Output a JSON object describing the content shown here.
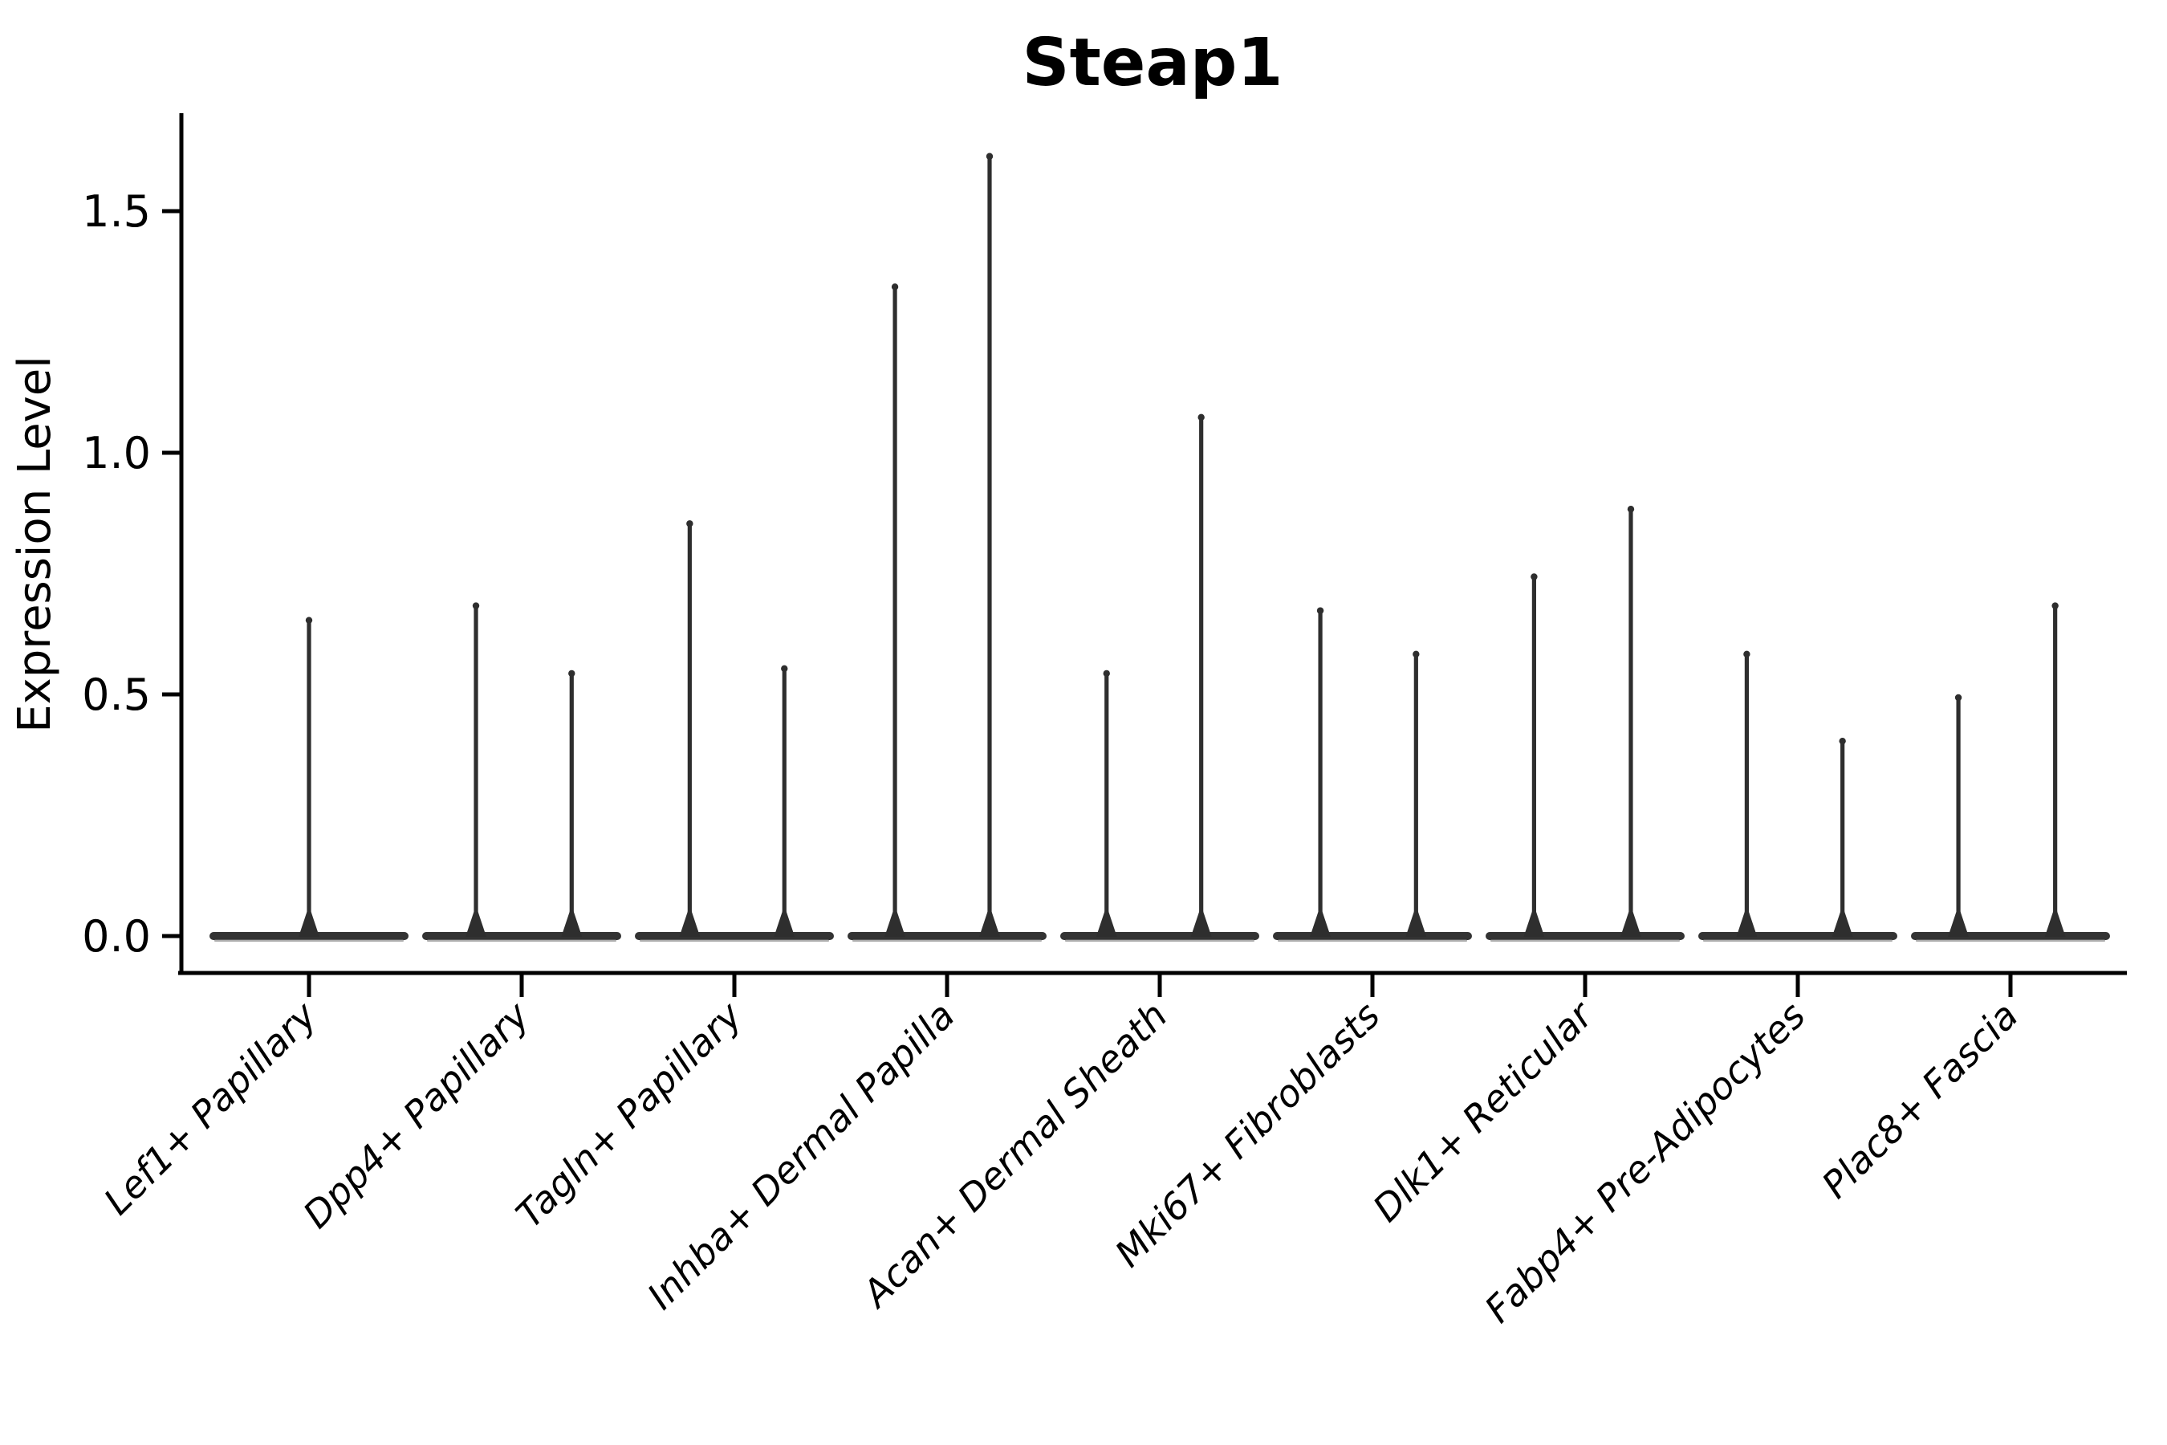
{
  "page": {
    "background": "#ffffff"
  },
  "chart_data": {
    "type": "violin",
    "title": "Steap1",
    "ylabel": "Expression Level",
    "xlabel": "",
    "grid": false,
    "legend": "none",
    "ylim": [
      -0.08,
      1.7
    ],
    "ytick_labels": [
      "0.0",
      "0.5",
      "1.0",
      "1.5"
    ],
    "ytick_values": [
      0.0,
      0.5,
      1.0,
      1.5
    ],
    "categories": [
      "Lef1+ Papillary",
      "Dpp4+ Papillary",
      "Tagln+ Papillary",
      "Inhba+ Dermal Papilla",
      "Acan+ Dermal Sheath",
      "Mki67+ Fibroblasts",
      "Dlk1+ Reticular",
      "Fabp4+ Pre-Adipocytes",
      "Plac8+ Fascia"
    ],
    "violins": [
      {
        "category": "Lef1+ Papillary",
        "spikes": [
          {
            "offset": 0.0,
            "max": 0.66
          }
        ]
      },
      {
        "category": "Dpp4+ Papillary",
        "spikes": [
          {
            "offset": -0.215,
            "max": 0.69
          },
          {
            "offset": 0.235,
            "max": 0.55
          }
        ]
      },
      {
        "category": "Tagln+ Papillary",
        "spikes": [
          {
            "offset": -0.21,
            "max": 0.86
          },
          {
            "offset": 0.235,
            "max": 0.56
          }
        ]
      },
      {
        "category": "Inhba+ Dermal Papilla",
        "spikes": [
          {
            "offset": -0.245,
            "max": 1.35
          },
          {
            "offset": 0.2,
            "max": 1.62
          }
        ]
      },
      {
        "category": "Acan+ Dermal Sheath",
        "spikes": [
          {
            "offset": -0.25,
            "max": 0.55
          },
          {
            "offset": 0.195,
            "max": 1.08
          }
        ]
      },
      {
        "category": "Mki67+ Fibroblasts",
        "spikes": [
          {
            "offset": -0.245,
            "max": 0.68
          },
          {
            "offset": 0.205,
            "max": 0.59
          }
        ]
      },
      {
        "category": "Dlk1+ Reticular",
        "spikes": [
          {
            "offset": -0.24,
            "max": 0.75
          },
          {
            "offset": 0.215,
            "max": 0.89
          }
        ]
      },
      {
        "category": "Fabp4+ Pre-Adipocytes",
        "spikes": [
          {
            "offset": -0.24,
            "max": 0.59
          },
          {
            "offset": 0.21,
            "max": 0.41
          }
        ]
      },
      {
        "category": "Plac8+ Fascia",
        "spikes": [
          {
            "offset": -0.245,
            "max": 0.5
          },
          {
            "offset": 0.21,
            "max": 0.69
          }
        ]
      }
    ],
    "colors": {
      "spike": "#2e2e2e",
      "baseline": "#333333",
      "baseline_underline": "#9a9a9a",
      "axis": "#000000",
      "text": "#000000",
      "background": "#ffffff"
    }
  }
}
